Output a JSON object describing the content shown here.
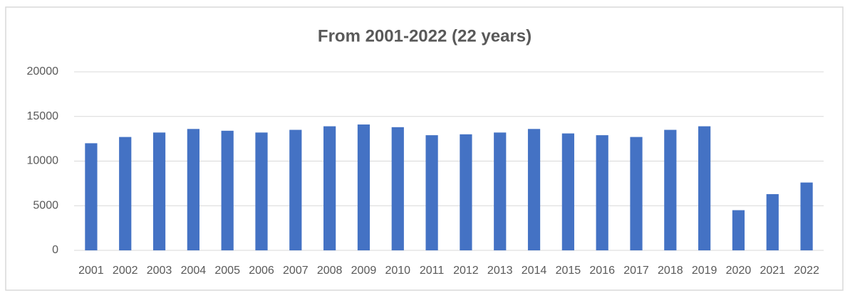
{
  "chart_data": {
    "type": "bar",
    "title": "From 2001-2022 (22 years)",
    "categories": [
      "2001",
      "2002",
      "2003",
      "2004",
      "2005",
      "2006",
      "2007",
      "2008",
      "2009",
      "2010",
      "2011",
      "2012",
      "2013",
      "2014",
      "2015",
      "2016",
      "2017",
      "2018",
      "2019",
      "2020",
      "2021",
      "2022"
    ],
    "values": [
      12000,
      12700,
      13200,
      13600,
      13400,
      13200,
      13500,
      13900,
      14100,
      13800,
      12900,
      13000,
      13200,
      13600,
      13100,
      12900,
      12700,
      13500,
      13900,
      4500,
      6300,
      7600
    ],
    "color": "#4472c4",
    "ylim": [
      0,
      20000
    ],
    "yticks": [
      0,
      5000,
      10000,
      15000,
      20000
    ],
    "grid": true
  }
}
